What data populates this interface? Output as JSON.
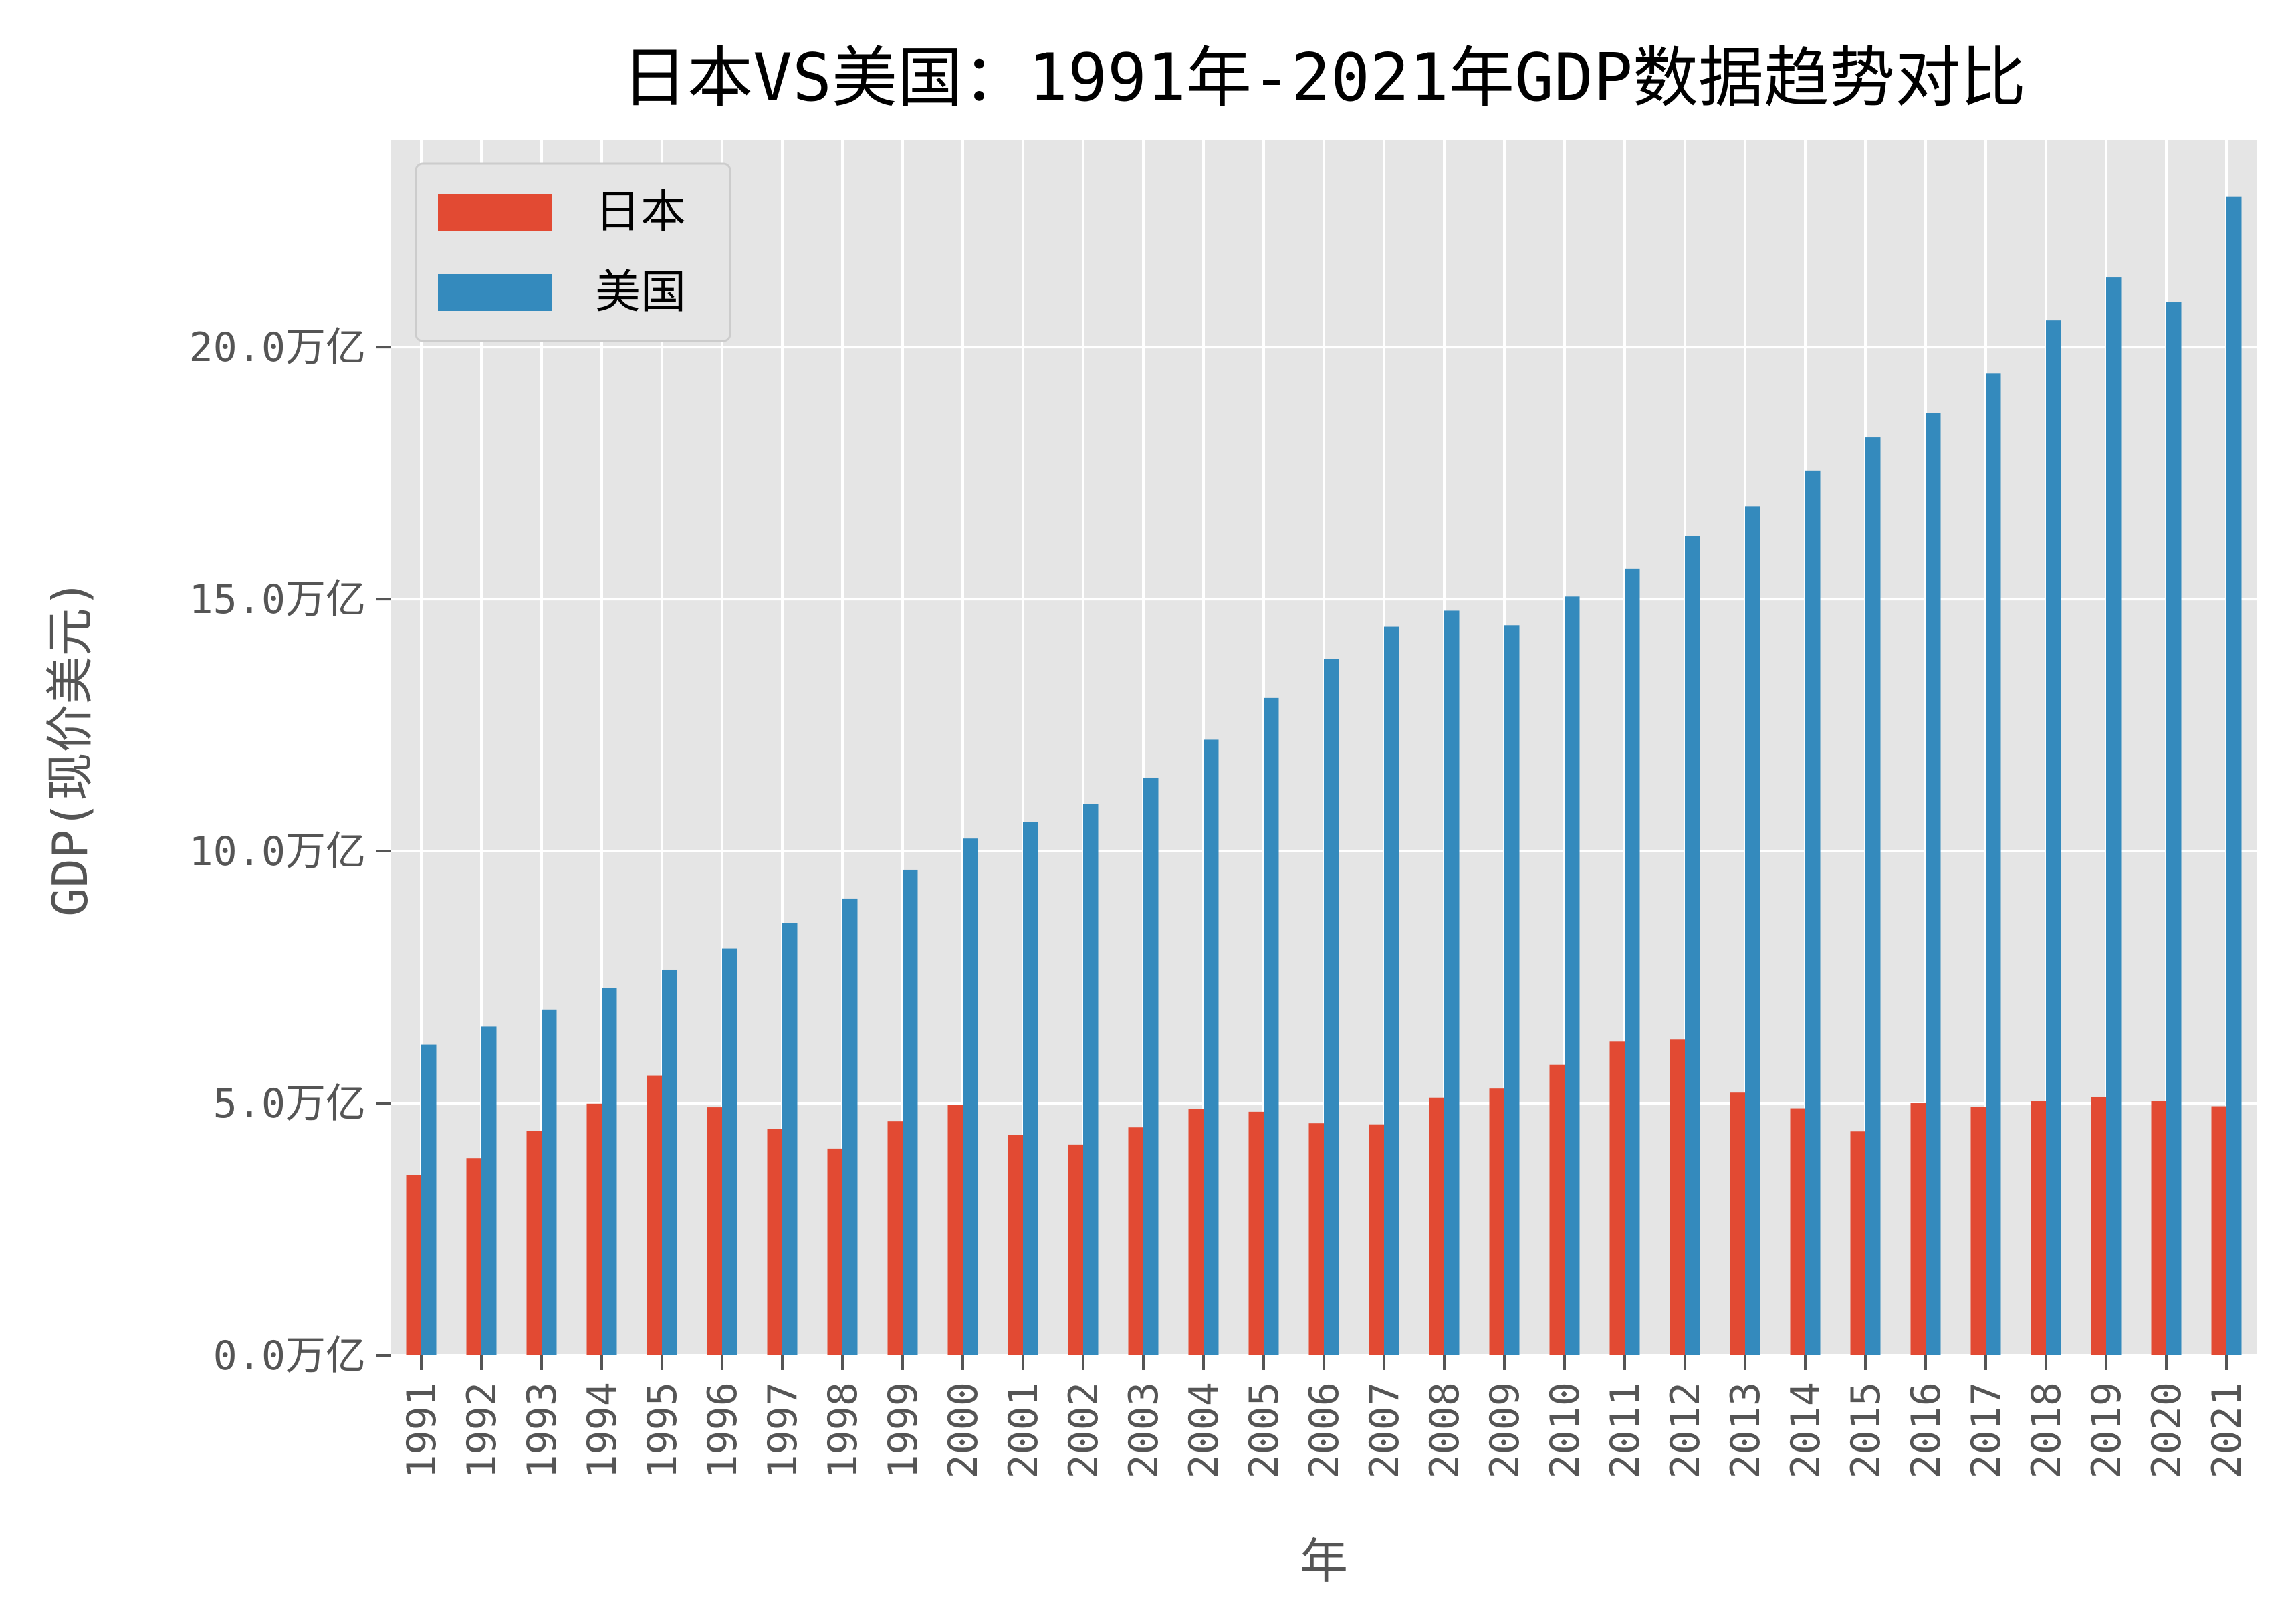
{
  "chart_data": {
    "type": "bar",
    "title": "日本VS美国：1991年-2021年GDP数据趋势对比",
    "xlabel": "年",
    "ylabel": "GDP(现价美元)",
    "categories": [
      "1991",
      "1992",
      "1993",
      "1994",
      "1995",
      "1996",
      "1997",
      "1998",
      "1999",
      "2000",
      "2001",
      "2002",
      "2003",
      "2004",
      "2005",
      "2006",
      "2007",
      "2008",
      "2009",
      "2010",
      "2011",
      "2012",
      "2013",
      "2014",
      "2015",
      "2016",
      "2017",
      "2018",
      "2019",
      "2020",
      "2021"
    ],
    "series": [
      {
        "name": "日本",
        "color": "#E24A33",
        "values": [
          3.58,
          3.91,
          4.45,
          4.99,
          5.55,
          4.92,
          4.49,
          4.1,
          4.64,
          4.97,
          4.37,
          4.18,
          4.52,
          4.89,
          4.83,
          4.6,
          4.58,
          5.11,
          5.29,
          5.76,
          6.23,
          6.27,
          5.21,
          4.9,
          4.44,
          5.0,
          4.93,
          5.04,
          5.12,
          5.04,
          4.94
        ]
      },
      {
        "name": "美国",
        "color": "#348ABD",
        "values": [
          6.16,
          6.52,
          6.86,
          7.29,
          7.64,
          8.07,
          8.58,
          9.06,
          9.63,
          10.25,
          10.58,
          10.94,
          11.46,
          12.21,
          13.04,
          13.82,
          14.45,
          14.77,
          14.48,
          15.05,
          15.6,
          16.25,
          16.84,
          17.55,
          18.21,
          18.7,
          19.48,
          20.53,
          21.38,
          20.89,
          22.99
        ]
      }
    ],
    "ylim": [
      0,
      24.1
    ],
    "yticks": [
      0,
      5,
      10,
      15,
      20
    ],
    "ytick_labels": [
      "0.0万亿",
      "5.0万亿",
      "10.0万亿",
      "15.0万亿",
      "20.0万亿"
    ],
    "grid": true,
    "legend_position": "top-left",
    "plot_background": "#E5E5E5",
    "grid_color": "#FFFFFF"
  }
}
